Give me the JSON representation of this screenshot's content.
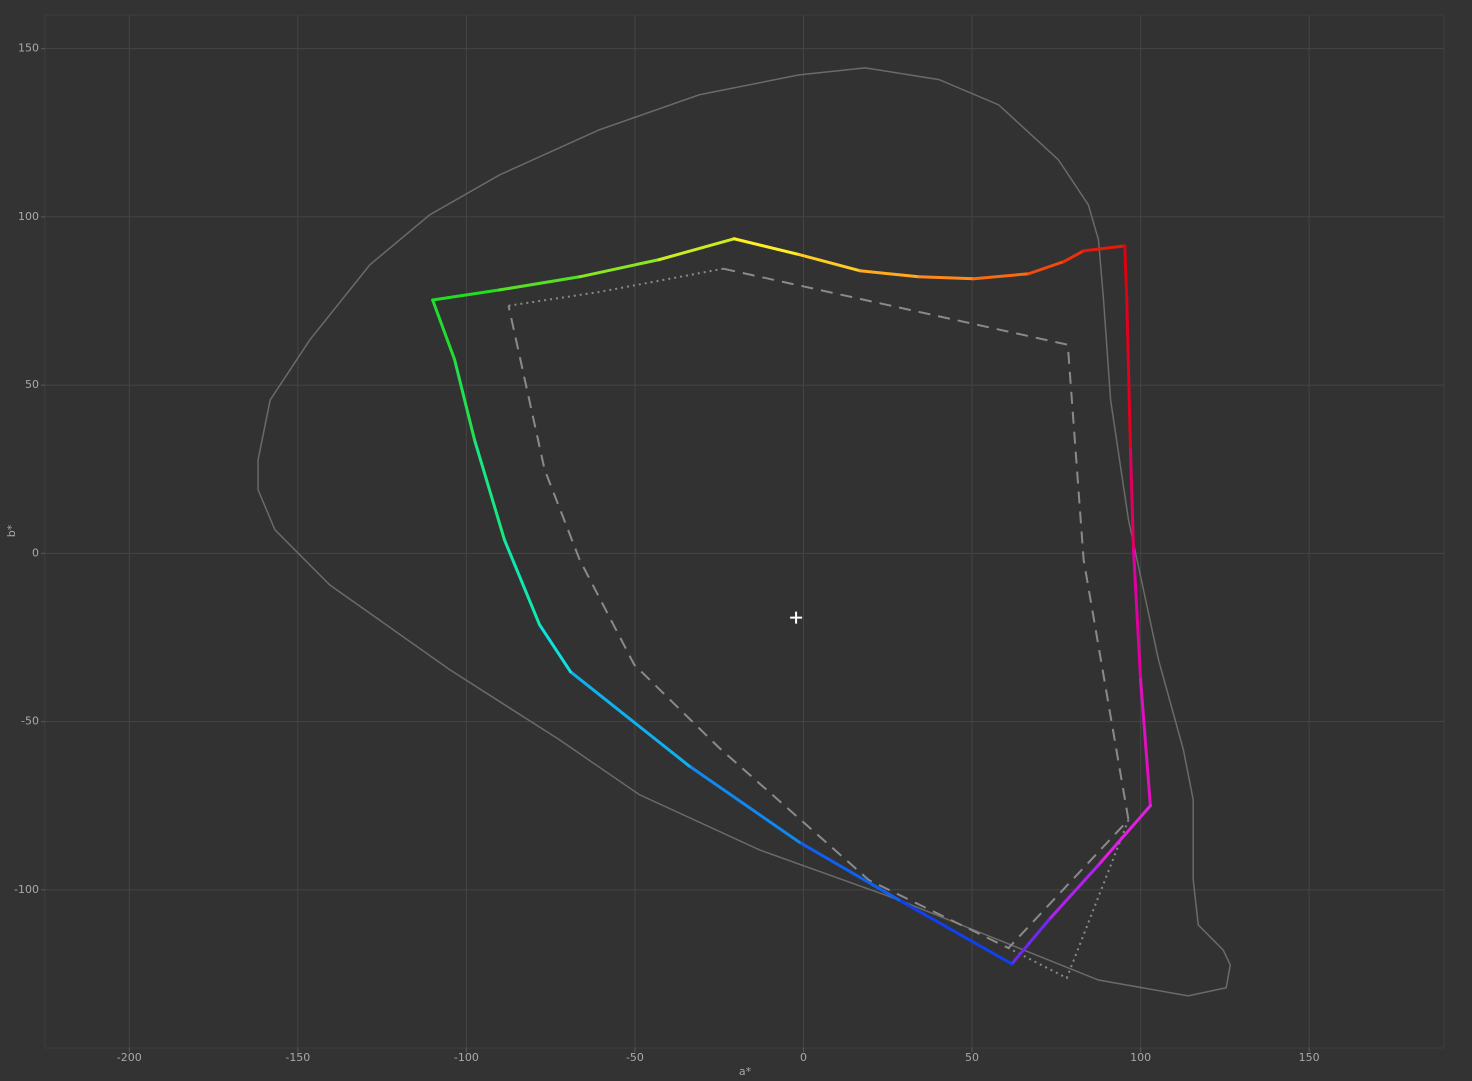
{
  "chart_data": {
    "type": "gamut",
    "x_label": "a*",
    "y_label": "b*",
    "xlim": [
      -225,
      190
    ],
    "ylim": [
      -147,
      160
    ],
    "xticks": [
      -200,
      -150,
      -100,
      -50,
      0,
      50,
      100,
      150
    ],
    "yticks": [
      -100,
      -50,
      0,
      50,
      100,
      150
    ],
    "grid": true,
    "series": [
      {
        "style": "solid",
        "color": "#6a6a6a",
        "closed": true,
        "x": [
          18.3,
          -1.3,
          -30.9,
          -60.5,
          -90.1,
          -110.9,
          -128.6,
          -146.4,
          -158.2,
          -161.8,
          -161.8,
          -156.8,
          -140.5,
          -104.9,
          -72.4,
          -48.7,
          -13.1,
          28.3,
          57.9,
          87.5,
          114.1,
          125.4,
          126.6,
          124.5,
          117.1,
          115.6,
          115.6,
          112.7,
          105.3,
          96.4,
          91.1,
          89.0,
          87.5,
          84.5,
          75.6,
          57.9,
          40.2
        ],
        "y": [
          144.3,
          142.2,
          136.3,
          125.9,
          112.5,
          100.6,
          85.8,
          63.5,
          45.6,
          27.8,
          18.9,
          7.0,
          -9.4,
          -34.6,
          -55.4,
          -71.7,
          -88.1,
          -103,
          -114.9,
          -126.8,
          -131.5,
          -129.1,
          -122.3,
          -117.9,
          -110.4,
          -97.0,
          -73.2,
          -58.4,
          -31.6,
          10.0,
          45.6,
          75.4,
          93.2,
          103.6,
          117.0,
          133.3,
          140.8
        ]
      },
      {
        "style": "dashed",
        "color": "#8a8a8a",
        "closed": false,
        "x": [
          -23.8,
          78.4,
          83.1,
          96.4,
          60.8,
          19.4,
          -25.0,
          -50.2,
          -66.4,
          -76.8,
          -87.5
        ],
        "y": [
          84.6,
          62.0,
          -1.9,
          -79.2,
          -117.3,
          -97.1,
          -57.8,
          -33.1,
          -1.9,
          24.9,
          73.6
        ]
      },
      {
        "style": "dotted",
        "color": "#8a8a8a",
        "closed": false,
        "x": [
          -87.5,
          -60.5,
          -23.8
        ],
        "y": [
          73.6,
          77.7,
          84.6
        ]
      },
      {
        "style": "dotted",
        "color": "#8a8a8a",
        "closed": false,
        "x": [
          96.4,
          78.1,
          60.8
        ],
        "y": [
          -79.2,
          -126.2,
          -117.3
        ]
      },
      {
        "style": "solid",
        "closed": true,
        "x": [
          -110,
          -90.1,
          -66.4,
          -42.8,
          -20.6,
          -1.3,
          16.7,
          34.2,
          50.5,
          66.8,
          77.2,
          83.1,
          95.3,
          95.9,
          97.0,
          97.9,
          100,
          102.9,
          87.5,
          72.7,
          61.8,
          28.3,
          -1.3,
          -33.9,
          -69.1,
          -78.3,
          -88.7,
          -97.6,
          -103.5
        ],
        "y": [
          75.3,
          78.3,
          82.2,
          87.3,
          93.5,
          88.8,
          84.0,
          82.2,
          81.6,
          83.1,
          86.7,
          89.9,
          91.4,
          75.4,
          30.8,
          1.1,
          -37.6,
          -75.0,
          -92.6,
          -109,
          -122,
          -103,
          -85.8,
          -63.2,
          -35.2,
          -21.2,
          4.0,
          33.8,
          57.6
        ],
        "colors": [
          "#22dd22",
          "#55e022",
          "#88e622",
          "#c8ee22",
          "#ffee22",
          "#ffcc22",
          "#ffaa20",
          "#ff8a1a",
          "#f86a14",
          "#f04a10",
          "#ea300c",
          "#e41a0a",
          "#e00010",
          "#e00020",
          "#e00060",
          "#e000a0",
          "#e010c0",
          "#e020e0",
          "#b020f0",
          "#7028f0",
          "#1040f0",
          "#1060f0",
          "#1088f0",
          "#10b0f0",
          "#10e0e0",
          "#10e8b0",
          "#18e880",
          "#20e050",
          "#22dd30"
        ]
      }
    ],
    "white_point": {
      "x": -2.2,
      "y": -19.1,
      "color": "#ffffff"
    }
  }
}
